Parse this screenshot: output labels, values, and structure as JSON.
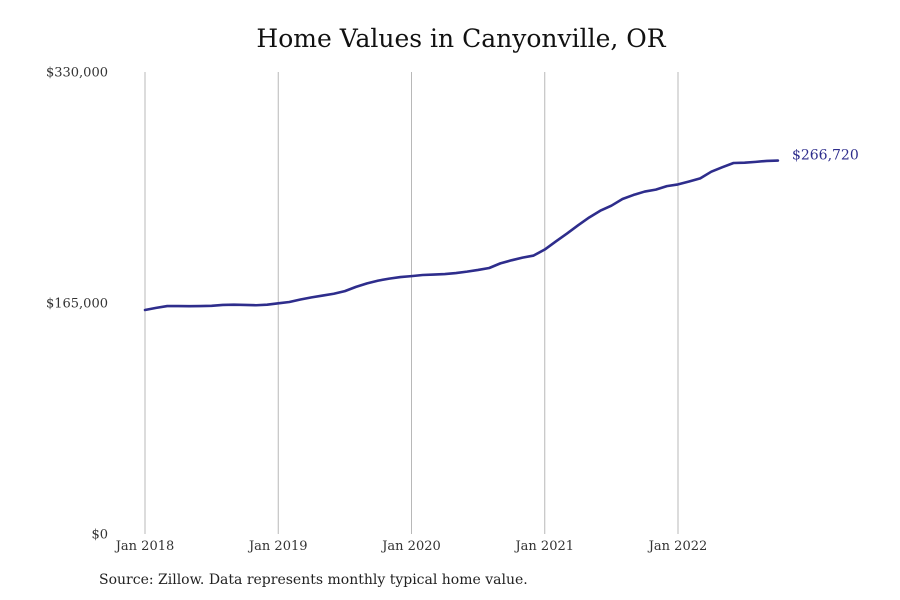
{
  "page": {
    "title": "Home Values in Canyonville, OR",
    "source": "Source: Zillow. Data represents monthly typical home value."
  },
  "chart_data": {
    "type": "line",
    "title": "Home Values in Canyonville, OR",
    "xlabel": "",
    "ylabel": "",
    "ylim": [
      0,
      330000
    ],
    "xlim": [
      "2018-01",
      "2022-10"
    ],
    "y_ticks": [
      {
        "value": 0,
        "label": "$0"
      },
      {
        "value": 165000,
        "label": "$165,000"
      },
      {
        "value": 330000,
        "label": "$330,000"
      }
    ],
    "x_ticks": [
      {
        "value": "2018-01",
        "label": "Jan 2018"
      },
      {
        "value": "2019-01",
        "label": "Jan 2019"
      },
      {
        "value": "2020-01",
        "label": "Jan 2020"
      },
      {
        "value": "2021-01",
        "label": "Jan 2021"
      },
      {
        "value": "2022-01",
        "label": "Jan 2022"
      }
    ],
    "grid": {
      "vertical": true,
      "horizontal": false
    },
    "line_color": "#2e2d8c",
    "grid_color": "#b8b8b8",
    "series": [
      {
        "name": "",
        "x": [
          "2018-01",
          "2018-02",
          "2018-03",
          "2018-04",
          "2018-05",
          "2018-06",
          "2018-07",
          "2018-08",
          "2018-09",
          "2018-10",
          "2018-11",
          "2018-12",
          "2019-01",
          "2019-02",
          "2019-03",
          "2019-04",
          "2019-05",
          "2019-06",
          "2019-07",
          "2019-08",
          "2019-09",
          "2019-10",
          "2019-11",
          "2019-12",
          "2020-01",
          "2020-02",
          "2020-03",
          "2020-04",
          "2020-05",
          "2020-06",
          "2020-07",
          "2020-08",
          "2020-09",
          "2020-10",
          "2020-11",
          "2020-12",
          "2021-01",
          "2021-02",
          "2021-03",
          "2021-04",
          "2021-05",
          "2021-06",
          "2021-07",
          "2021-08",
          "2021-09",
          "2021-10",
          "2021-11",
          "2021-12",
          "2022-01",
          "2022-02",
          "2022-03",
          "2022-04",
          "2022-05",
          "2022-06",
          "2022-07",
          "2022-08",
          "2022-09",
          "2022-10"
        ],
        "values": [
          160000,
          161500,
          162800,
          162800,
          162700,
          162800,
          163000,
          163600,
          163800,
          163600,
          163400,
          163800,
          164800,
          165700,
          167500,
          169000,
          170300,
          171600,
          173500,
          176500,
          179000,
          181000,
          182400,
          183500,
          184200,
          185000,
          185300,
          185700,
          186400,
          187400,
          188600,
          190000,
          193300,
          195500,
          197400,
          198900,
          203200,
          209000,
          214600,
          220500,
          226100,
          230900,
          234500,
          239300,
          242200,
          244600,
          246000,
          248500,
          249700,
          251800,
          254000,
          258800,
          262000,
          265000,
          265200,
          265800,
          266500,
          266720
        ]
      }
    ],
    "last_value_label": "$266,720"
  }
}
